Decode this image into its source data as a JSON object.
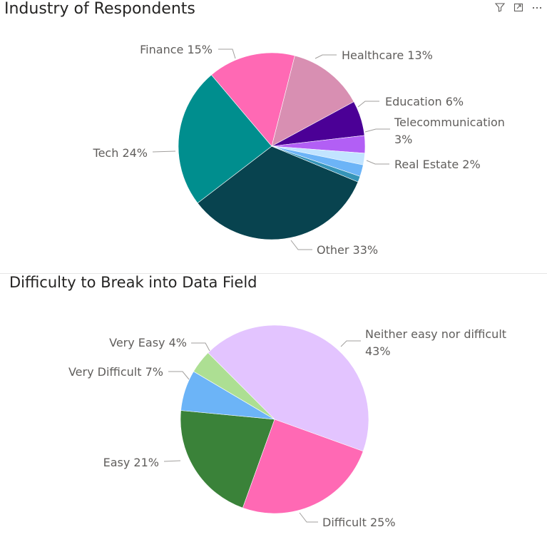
{
  "chart_data": [
    {
      "type": "pie",
      "title": "Industry of Respondents",
      "slices": [
        {
          "label": "Other",
          "value": 33,
          "color": "#08434f",
          "display": "Other 33%"
        },
        {
          "label": "Tech",
          "value": 24,
          "color": "#008e8e",
          "display": "Tech 24%"
        },
        {
          "label": "Finance",
          "value": 15,
          "color": "#ff69b4",
          "display": "Finance 15%"
        },
        {
          "label": "Healthcare",
          "value": 13,
          "color": "#d88fb2",
          "display": "Healthcare 13%"
        },
        {
          "label": "Education",
          "value": 6,
          "color": "#4b0096",
          "display": "Education 6%"
        },
        {
          "label": "Telecommunication",
          "value": 3,
          "color": "#b25ff5",
          "display": "Telecommunication 3%"
        },
        {
          "label": "",
          "value": 2,
          "color": "#c2e4ff",
          "display": ""
        },
        {
          "label": "Real Estate",
          "value": 2,
          "color": "#6cb4f7",
          "display": "Real Estate 2%"
        },
        {
          "label": "",
          "value": 1,
          "color": "#3594b8",
          "display": ""
        }
      ]
    },
    {
      "type": "pie",
      "title": "Difficulty to Break into Data Field",
      "slices": [
        {
          "label": "Neither easy nor difficult",
          "value": 43,
          "color": "#e3c4ff",
          "display": "Neither easy nor difficult 43%"
        },
        {
          "label": "Difficult",
          "value": 25,
          "color": "#ff69b4",
          "display": "Difficult 25%"
        },
        {
          "label": "Easy",
          "value": 21,
          "color": "#3a8239",
          "display": "Easy 21%"
        },
        {
          "label": "Very Difficult",
          "value": 7,
          "color": "#6cb4f7",
          "display": "Very Difficult 7%"
        },
        {
          "label": "Very Easy",
          "value": 4,
          "color": "#addf93",
          "display": "Very Easy 4%"
        }
      ]
    }
  ],
  "header_icons": [
    "filter-icon",
    "focus-mode-icon",
    "more-options-icon"
  ]
}
